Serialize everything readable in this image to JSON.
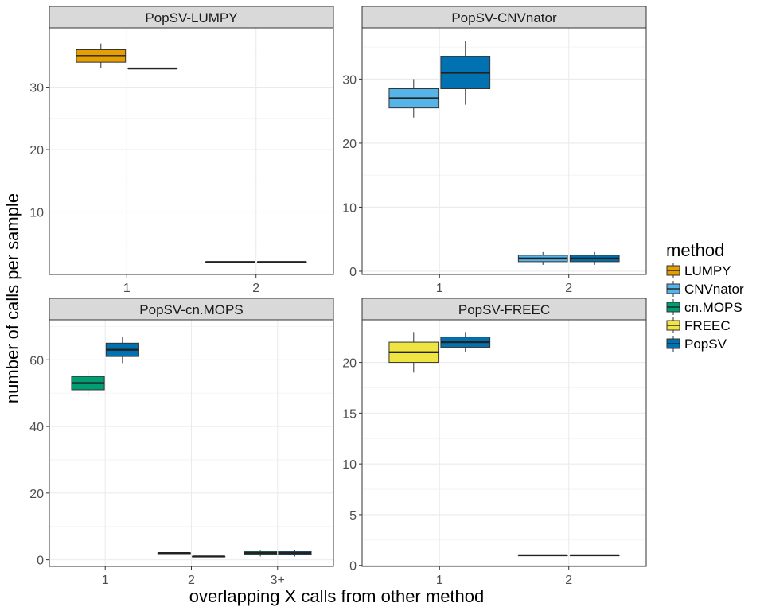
{
  "chart_data": {
    "type": "boxplot",
    "xlabel": "overlapping X calls from other method",
    "ylabel": "number of calls per sample",
    "legend": {
      "title": "method",
      "placement": "right",
      "entries": [
        {
          "name": "LUMPY",
          "color": "#E69F00"
        },
        {
          "name": "CNVnator",
          "color": "#56B4E9"
        },
        {
          "name": "cn.MOPS",
          "color": "#009E73"
        },
        {
          "name": "FREEC",
          "color": "#F0E442"
        },
        {
          "name": "PopSV",
          "color": "#0072B2"
        }
      ]
    },
    "panels": [
      {
        "title": "PopSV-LUMPY",
        "categories": [
          "1",
          "2"
        ],
        "ylim": [
          0,
          39.5
        ],
        "yticks": [
          10,
          20,
          30
        ],
        "boxes": [
          {
            "category": "1",
            "method": "LUMPY",
            "min": 33,
            "q1": 34,
            "median": 35,
            "q3": 36,
            "max": 37
          },
          {
            "category": "1",
            "method": "PopSV",
            "min": 33,
            "q1": 33,
            "median": 33,
            "q3": 33,
            "max": 33
          },
          {
            "category": "2",
            "method": "LUMPY",
            "min": 2,
            "q1": 2,
            "median": 2,
            "q3": 2,
            "max": 2
          },
          {
            "category": "2",
            "method": "PopSV",
            "min": 2,
            "q1": 2,
            "median": 2,
            "q3": 2,
            "max": 2
          }
        ]
      },
      {
        "title": "PopSV-CNVnator",
        "categories": [
          "1",
          "2"
        ],
        "ylim": [
          -0.5,
          38
        ],
        "yticks": [
          0,
          10,
          20,
          30
        ],
        "boxes": [
          {
            "category": "1",
            "method": "CNVnator",
            "min": 24,
            "q1": 25.5,
            "median": 27,
            "q3": 28.5,
            "max": 30
          },
          {
            "category": "1",
            "method": "PopSV",
            "min": 26,
            "q1": 28.5,
            "median": 31,
            "q3": 33.5,
            "max": 36
          },
          {
            "category": "2",
            "method": "CNVnator",
            "min": 1,
            "q1": 1.5,
            "median": 2,
            "q3": 2.5,
            "max": 3
          },
          {
            "category": "2",
            "method": "PopSV",
            "min": 1,
            "q1": 1.5,
            "median": 2,
            "q3": 2.5,
            "max": 3
          }
        ]
      },
      {
        "title": "PopSV-cn.MOPS",
        "categories": [
          "1",
          "2",
          "3+"
        ],
        "ylim": [
          -2,
          72
        ],
        "yticks": [
          0,
          20,
          40,
          60
        ],
        "boxes": [
          {
            "category": "1",
            "method": "cn.MOPS",
            "min": 49,
            "q1": 51,
            "median": 53,
            "q3": 55,
            "max": 57
          },
          {
            "category": "1",
            "method": "PopSV",
            "min": 59,
            "q1": 61,
            "median": 63,
            "q3": 65,
            "max": 67
          },
          {
            "category": "2",
            "method": "cn.MOPS",
            "min": 2,
            "q1": 2,
            "median": 2,
            "q3": 2,
            "max": 2
          },
          {
            "category": "2",
            "method": "PopSV",
            "min": 1,
            "q1": 1,
            "median": 1,
            "q3": 1,
            "max": 1
          },
          {
            "category": "3+",
            "method": "cn.MOPS",
            "min": 1,
            "q1": 1.5,
            "median": 2,
            "q3": 2.5,
            "max": 3
          },
          {
            "category": "3+",
            "method": "PopSV",
            "min": 1,
            "q1": 1.5,
            "median": 2,
            "q3": 2.5,
            "max": 3
          }
        ]
      },
      {
        "title": "PopSV-FREEC",
        "categories": [
          "1",
          "2"
        ],
        "ylim": [
          -0.1,
          24.2
        ],
        "yticks": [
          0,
          5,
          10,
          15,
          20
        ],
        "boxes": [
          {
            "category": "1",
            "method": "FREEC",
            "min": 19,
            "q1": 20,
            "median": 21,
            "q3": 22,
            "max": 23
          },
          {
            "category": "1",
            "method": "PopSV",
            "min": 21,
            "q1": 21.5,
            "median": 22,
            "q3": 22.5,
            "max": 23
          },
          {
            "category": "2",
            "method": "FREEC",
            "min": 1,
            "q1": 1,
            "median": 1,
            "q3": 1,
            "max": 1
          },
          {
            "category": "2",
            "method": "PopSV",
            "min": 1,
            "q1": 1,
            "median": 1,
            "q3": 1,
            "max": 1
          }
        ]
      }
    ]
  }
}
